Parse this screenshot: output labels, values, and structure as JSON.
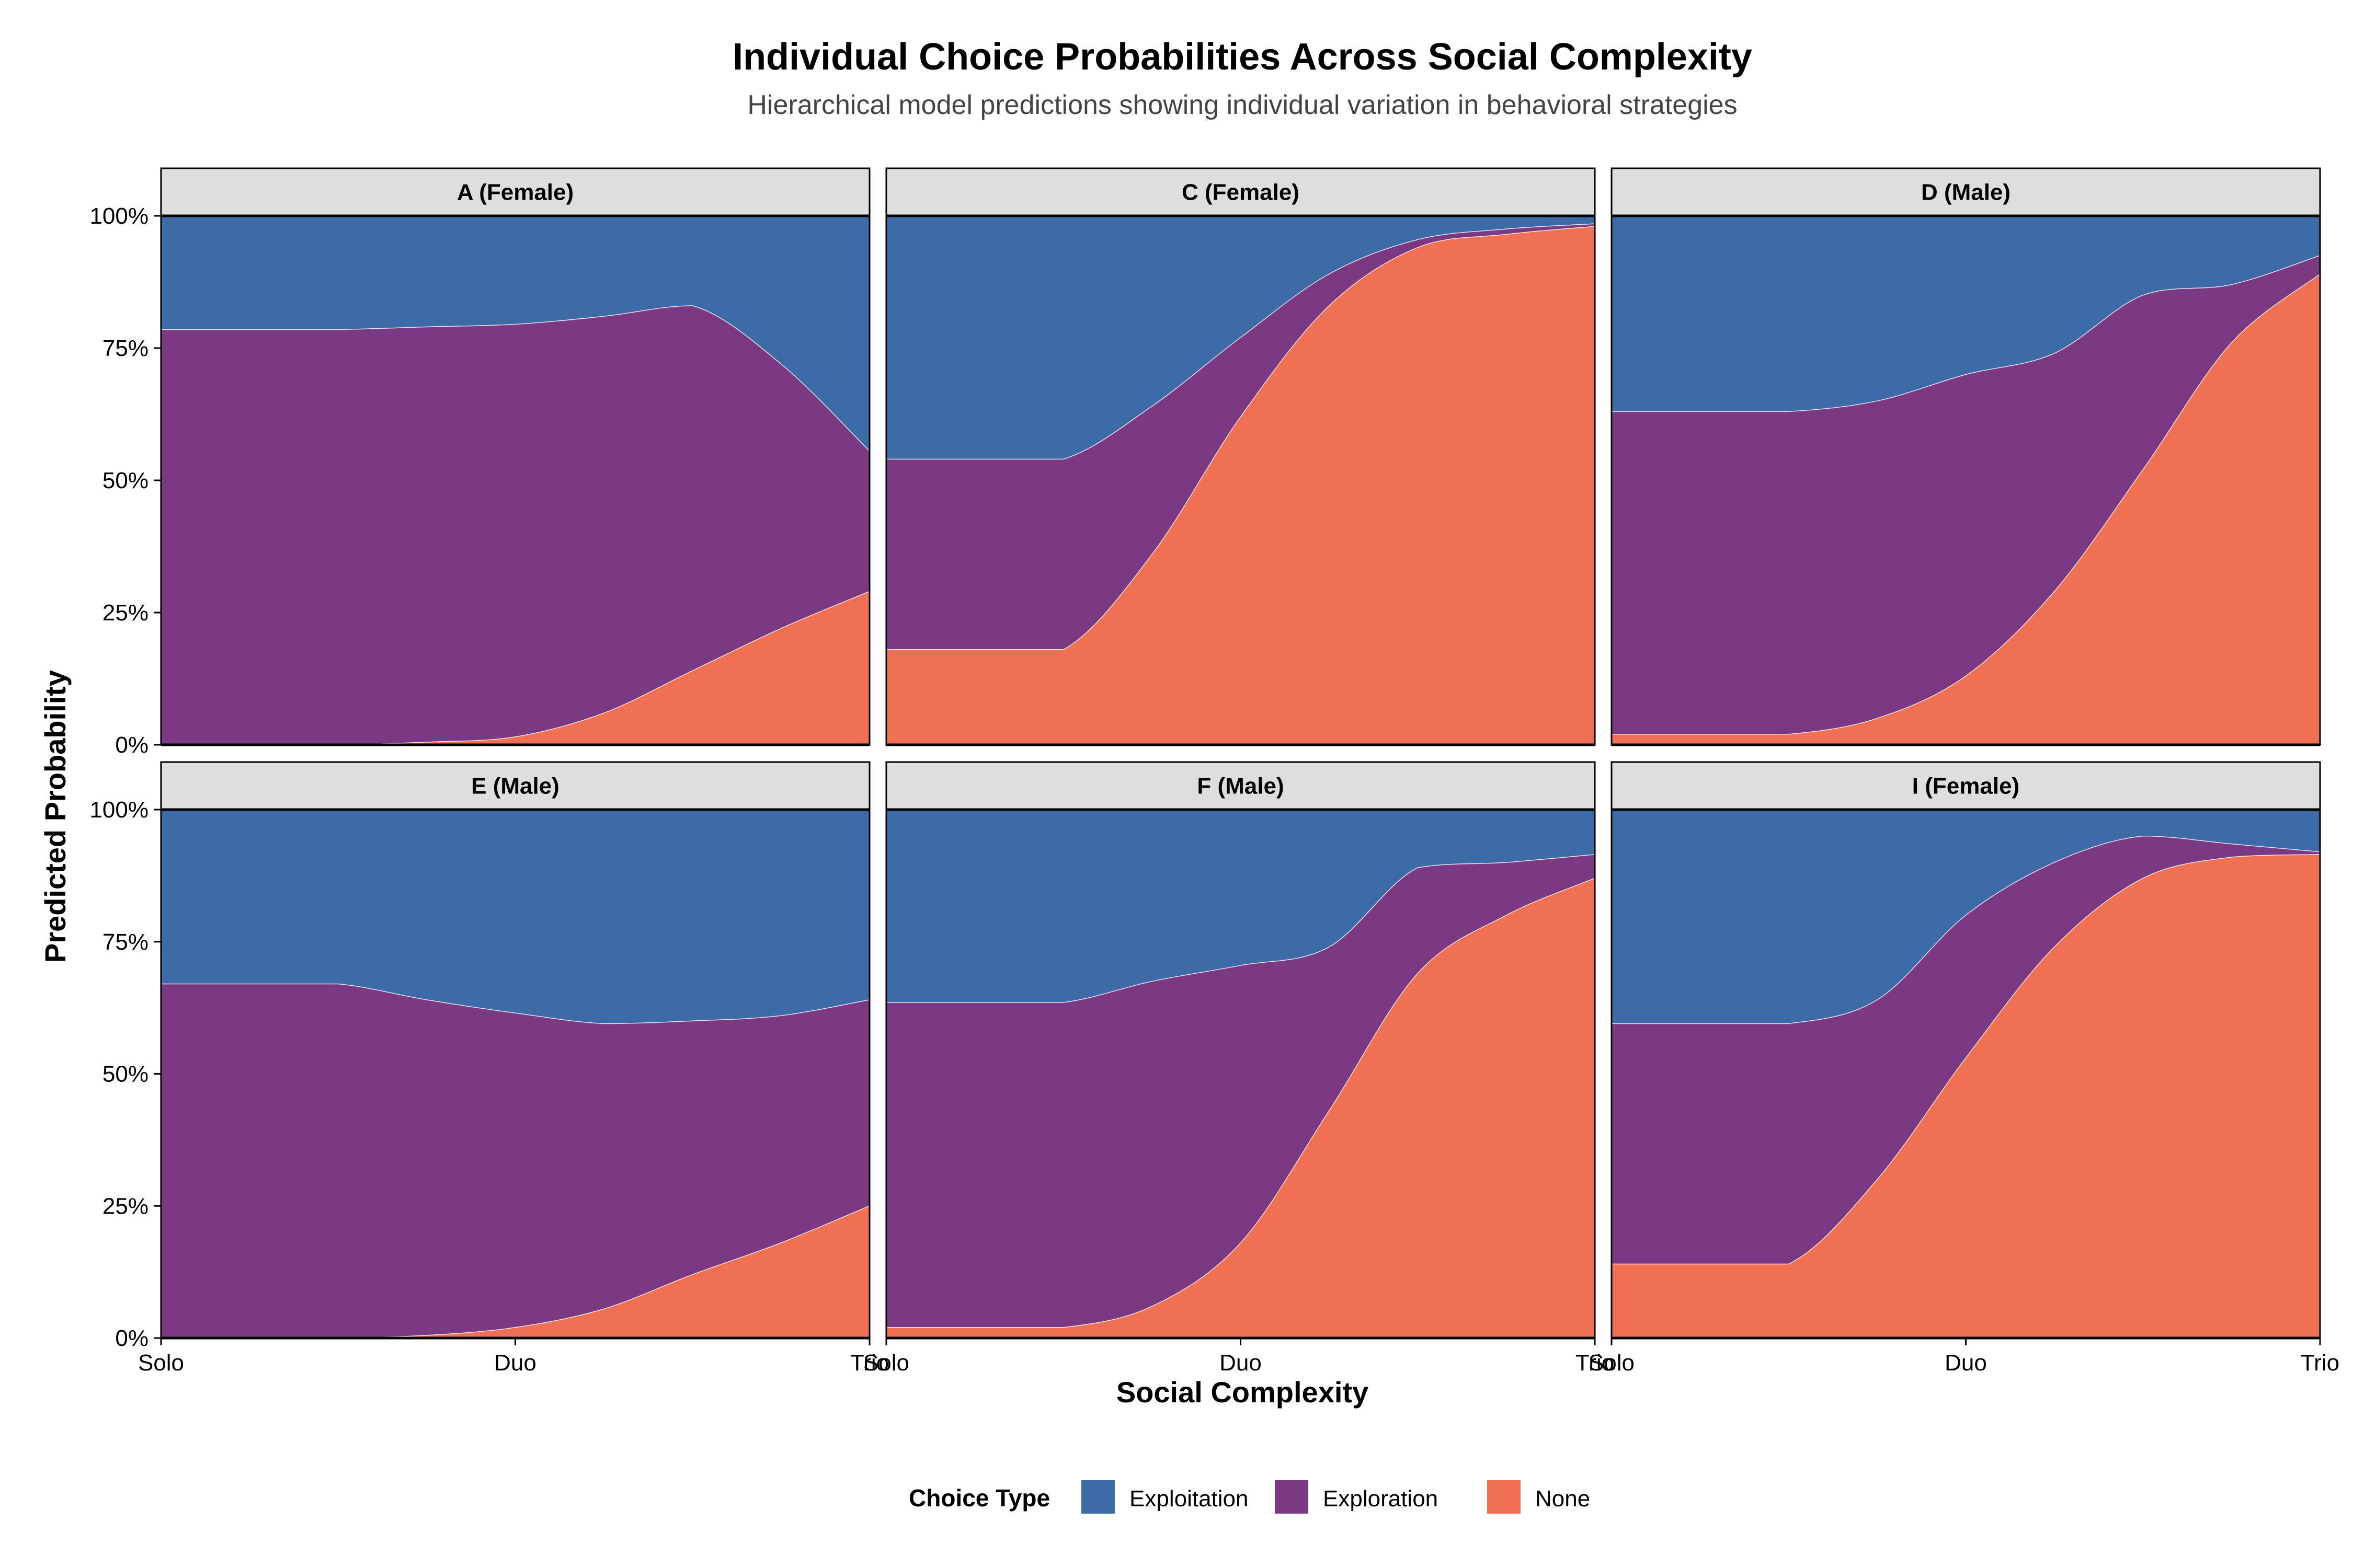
{
  "chart_data": {
    "type": "area",
    "stacked": true,
    "title": "Individual Choice Probabilities Across Social Complexity",
    "subtitle": "Hierarchical model predictions showing individual variation in behavioral strategies",
    "xlabel": "Social Complexity",
    "ylabel": "Predicted Probability",
    "x_categories": [
      "Solo",
      "Duo",
      "Trio"
    ],
    "x": [
      0,
      0.25,
      0.5,
      0.75,
      1.0,
      1.25,
      1.5,
      1.75,
      2.0
    ],
    "ylim": [
      0,
      1
    ],
    "y_ticks": [
      "0%",
      "25%",
      "50%",
      "75%",
      "100%"
    ],
    "legend": {
      "title": "Choice Type",
      "position": "bottom",
      "entries": [
        "Exploitation",
        "Exploration",
        "None"
      ]
    },
    "colors": {
      "Exploitation": "#3D6BA8",
      "Exploration": "#7A3982",
      "None": "#F07053"
    },
    "panels": [
      {
        "label": "A (Female)",
        "none": [
          0.0,
          0.0,
          0.0,
          0.005,
          0.015,
          0.06,
          0.14,
          0.22,
          0.29
        ],
        "exploration": [
          0.785,
          0.785,
          0.785,
          0.785,
          0.78,
          0.75,
          0.69,
          0.5,
          0.265
        ]
      },
      {
        "label": "C (Female)",
        "none": [
          0.18,
          0.18,
          0.18,
          0.36,
          0.62,
          0.83,
          0.94,
          0.965,
          0.98
        ],
        "exploration": [
          0.36,
          0.36,
          0.36,
          0.28,
          0.15,
          0.06,
          0.015,
          0.01,
          0.005
        ]
      },
      {
        "label": "D (Male)",
        "none": [
          0.02,
          0.02,
          0.02,
          0.05,
          0.13,
          0.29,
          0.52,
          0.76,
          0.89
        ],
        "exploration": [
          0.61,
          0.61,
          0.61,
          0.6,
          0.57,
          0.45,
          0.33,
          0.11,
          0.035
        ]
      },
      {
        "label": "E (Male)",
        "none": [
          0.0,
          0.0,
          0.0,
          0.005,
          0.02,
          0.055,
          0.12,
          0.18,
          0.25
        ],
        "exploration": [
          0.67,
          0.67,
          0.67,
          0.635,
          0.595,
          0.54,
          0.48,
          0.43,
          0.39
        ]
      },
      {
        "label": "F (Male)",
        "none": [
          0.02,
          0.02,
          0.02,
          0.06,
          0.18,
          0.43,
          0.69,
          0.8,
          0.87
        ],
        "exploration": [
          0.615,
          0.615,
          0.615,
          0.615,
          0.525,
          0.31,
          0.2,
          0.1,
          0.045
        ]
      },
      {
        "label": "I (Female)",
        "none": [
          0.14,
          0.14,
          0.14,
          0.3,
          0.53,
          0.74,
          0.87,
          0.91,
          0.915
        ],
        "exploration": [
          0.455,
          0.455,
          0.455,
          0.34,
          0.27,
          0.16,
          0.08,
          0.025,
          0.005
        ]
      }
    ]
  }
}
